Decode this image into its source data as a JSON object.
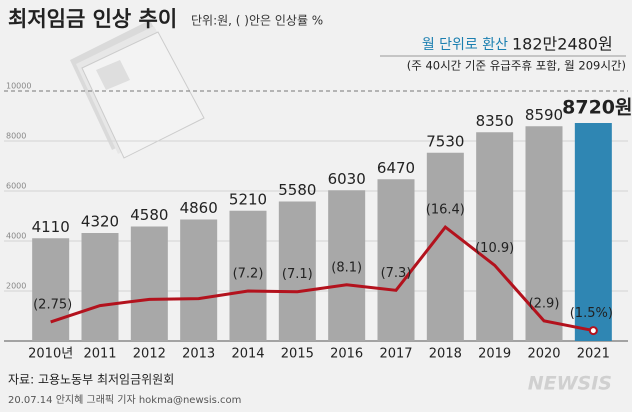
{
  "chart_data": {
    "type": "bar",
    "title": "최저임금 인상 추이",
    "subtitle": "단위:원, ( )안은 인상률 %",
    "annotation": "월 단위로 환산",
    "annotation_value": "182만2480원",
    "annotation_note": "(주 40시간 기준 유급주휴 포함, 월 209시간)",
    "source": "자료: 고용노동부 최저임금위원회",
    "credit": "20.07.14 안지혜 그래픽 기자 hokma@newsis.com",
    "logo": "NEWSIS",
    "categories": [
      "2010년",
      "2011",
      "2012",
      "2013",
      "2014",
      "2015",
      "2016",
      "2017",
      "2018",
      "2019",
      "2020",
      "2021"
    ],
    "series": [
      {
        "type": "bar",
        "color": "#a8a8a8",
        "highlight_color": "#2f86b3",
        "values": [
          4110,
          4320,
          4580,
          4860,
          5210,
          5580,
          6030,
          6470,
          7530,
          8350,
          8590,
          8720
        ],
        "value_labels": [
          "4110",
          "4320",
          "4580",
          "4860",
          "5210",
          "5580",
          "6030",
          "6470",
          "7530",
          "8350",
          "8590",
          "8720원"
        ]
      },
      {
        "type": "line",
        "axis": "y2",
        "color": "#b3121d",
        "values": [
          2.75,
          5.1,
          6.0,
          6.1,
          7.2,
          7.1,
          8.1,
          7.3,
          16.4,
          10.9,
          2.9,
          1.5
        ],
        "value_labels": [
          "(2.75)",
          null,
          null,
          null,
          "(7.2)",
          "(7.1)",
          "(8.1)",
          "(7.3)",
          "(16.4)",
          "(10.9)",
          "(2.9)",
          "(1.5%)"
        ]
      }
    ],
    "ylim": [
      0,
      10000
    ],
    "yticks": [
      2000,
      4000,
      6000,
      8000,
      10000
    ],
    "y2lim": [
      0,
      36
    ],
    "grid": true
  }
}
